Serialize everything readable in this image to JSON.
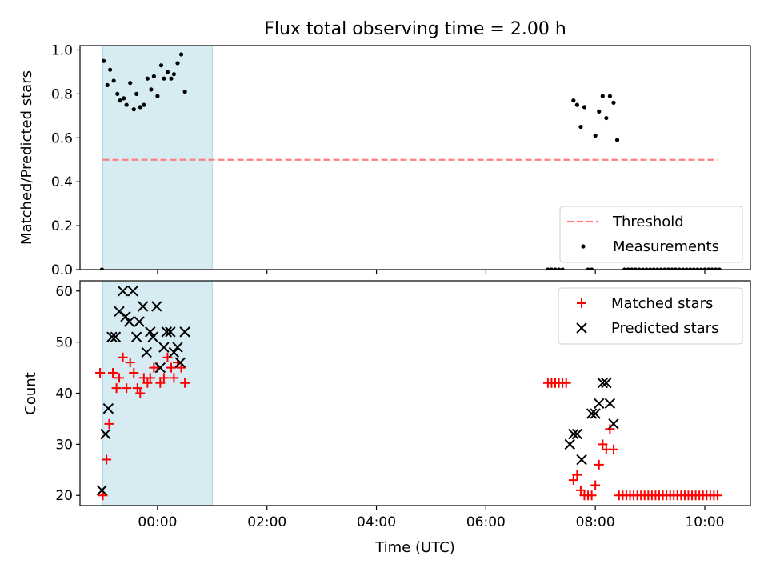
{
  "chart_data": [
    {
      "type": "scatter",
      "title": "Flux total observing time = 2.00 h",
      "xlabel": "",
      "ylabel": "Matched/Predicted stars",
      "xlim": [
        "-01:25",
        "10:50"
      ],
      "ylim": [
        0,
        1.02
      ],
      "yticks": [
        "0.0",
        "0.2",
        "0.4",
        "0.6",
        "0.8",
        "1.0"
      ],
      "shaded_span": [
        "-01:00",
        "01:00"
      ],
      "legend_position": "lower-right",
      "series": [
        {
          "name": "Threshold",
          "style": "dashed-line",
          "color": "#ff7f7f",
          "x": [
            "-01:00",
            "10:15"
          ],
          "values": [
            0.5,
            0.5
          ]
        },
        {
          "name": "Measurements",
          "style": "dot",
          "color": "#000000",
          "points": [
            [
              "-01:01",
              0.0
            ],
            [
              "-00:59",
              0.95
            ],
            [
              "-00:55",
              0.84
            ],
            [
              "-00:52",
              0.91
            ],
            [
              "-00:48",
              0.86
            ],
            [
              "-00:44",
              0.8
            ],
            [
              "-00:41",
              0.77
            ],
            [
              "-00:37",
              0.78
            ],
            [
              "-00:34",
              0.75
            ],
            [
              "-00:30",
              0.85
            ],
            [
              "-00:26",
              0.73
            ],
            [
              "-00:23",
              0.8
            ],
            [
              "-00:19",
              0.74
            ],
            [
              "-00:15",
              0.75
            ],
            [
              "-00:11",
              0.87
            ],
            [
              "-00:07",
              0.82
            ],
            [
              "-00:04",
              0.88
            ],
            [
              "00:00",
              0.79
            ],
            [
              "00:04",
              0.93
            ],
            [
              "00:07",
              0.87
            ],
            [
              "00:11",
              0.9
            ],
            [
              "00:15",
              0.87
            ],
            [
              "00:18",
              0.89
            ],
            [
              "00:22",
              0.94
            ],
            [
              "00:26",
              0.98
            ],
            [
              "00:30",
              0.81
            ],
            [
              "07:08",
              0.0
            ],
            [
              "07:12",
              0.0
            ],
            [
              "07:16",
              0.0
            ],
            [
              "07:20",
              0.0
            ],
            [
              "07:24",
              0.0
            ],
            [
              "07:36",
              0.77
            ],
            [
              "07:40",
              0.75
            ],
            [
              "07:44",
              0.65
            ],
            [
              "07:48",
              0.74
            ],
            [
              "07:52",
              0.0
            ],
            [
              "07:56",
              0.0
            ],
            [
              "08:00",
              0.61
            ],
            [
              "08:04",
              0.72
            ],
            [
              "08:08",
              0.79
            ],
            [
              "08:12",
              0.69
            ],
            [
              "08:16",
              0.79
            ],
            [
              "08:20",
              0.76
            ],
            [
              "08:24",
              0.59
            ],
            [
              "08:32",
              0.0
            ],
            [
              "08:36",
              0.0
            ],
            [
              "08:40",
              0.0
            ],
            [
              "08:44",
              0.0
            ],
            [
              "08:48",
              0.0
            ],
            [
              "08:52",
              0.0
            ],
            [
              "08:56",
              0.0
            ],
            [
              "09:00",
              0.0
            ],
            [
              "09:04",
              0.0
            ],
            [
              "09:08",
              0.0
            ],
            [
              "09:12",
              0.0
            ],
            [
              "09:16",
              0.0
            ],
            [
              "09:20",
              0.0
            ],
            [
              "09:24",
              0.0
            ],
            [
              "09:28",
              0.0
            ],
            [
              "09:32",
              0.0
            ],
            [
              "09:36",
              0.0
            ],
            [
              "09:40",
              0.0
            ],
            [
              "09:44",
              0.0
            ],
            [
              "09:48",
              0.0
            ],
            [
              "09:52",
              0.0
            ],
            [
              "09:56",
              0.0
            ],
            [
              "10:00",
              0.0
            ],
            [
              "10:04",
              0.0
            ],
            [
              "10:08",
              0.0
            ],
            [
              "10:12",
              0.0
            ],
            [
              "10:16",
              0.0
            ]
          ]
        }
      ]
    },
    {
      "type": "scatter",
      "title": "",
      "xlabel": "Time (UTC)",
      "ylabel": "Count",
      "xlim": [
        "-01:25",
        "10:50"
      ],
      "ylim": [
        18,
        62
      ],
      "yticks": [
        "20",
        "30",
        "40",
        "50",
        "60"
      ],
      "xticks": [
        "00:00",
        "02:00",
        "04:00",
        "06:00",
        "08:00",
        "10:00"
      ],
      "shaded_span": [
        "-01:00",
        "01:00"
      ],
      "legend_position": "upper-right",
      "series": [
        {
          "name": "Matched stars",
          "style": "plus",
          "color": "#ff0000",
          "points": [
            [
              "-01:03",
              44
            ],
            [
              "-01:00",
              20
            ],
            [
              "-00:56",
              27
            ],
            [
              "-00:53",
              34
            ],
            [
              "-00:49",
              44
            ],
            [
              "-00:45",
              41
            ],
            [
              "-00:42",
              43
            ],
            [
              "-00:38",
              47
            ],
            [
              "-00:34",
              41
            ],
            [
              "-00:30",
              46
            ],
            [
              "-00:26",
              44
            ],
            [
              "-00:22",
              41
            ],
            [
              "-00:19",
              40
            ],
            [
              "-00:15",
              43
            ],
            [
              "-00:11",
              42
            ],
            [
              "-00:08",
              43
            ],
            [
              "-00:04",
              45
            ],
            [
              "00:00",
              45
            ],
            [
              "00:03",
              42
            ],
            [
              "00:07",
              43
            ],
            [
              "00:11",
              47
            ],
            [
              "00:15",
              45
            ],
            [
              "00:18",
              43
            ],
            [
              "00:22",
              46
            ],
            [
              "00:26",
              45
            ],
            [
              "00:30",
              42
            ],
            [
              "07:08",
              42
            ],
            [
              "07:12",
              42
            ],
            [
              "07:16",
              42
            ],
            [
              "07:20",
              42
            ],
            [
              "07:24",
              42
            ],
            [
              "07:28",
              42
            ],
            [
              "07:36",
              23
            ],
            [
              "07:40",
              24
            ],
            [
              "07:44",
              21
            ],
            [
              "07:48",
              20
            ],
            [
              "07:52",
              20
            ],
            [
              "07:56",
              20
            ],
            [
              "08:00",
              22
            ],
            [
              "08:04",
              26
            ],
            [
              "08:08",
              30
            ],
            [
              "08:12",
              29
            ],
            [
              "08:16",
              33
            ],
            [
              "08:20",
              29
            ],
            [
              "08:26",
              20
            ],
            [
              "08:30",
              20
            ],
            [
              "08:34",
              20
            ],
            [
              "08:38",
              20
            ],
            [
              "08:42",
              20
            ],
            [
              "08:46",
              20
            ],
            [
              "08:50",
              20
            ],
            [
              "08:54",
              20
            ],
            [
              "08:58",
              20
            ],
            [
              "09:02",
              20
            ],
            [
              "09:06",
              20
            ],
            [
              "09:10",
              20
            ],
            [
              "09:14",
              20
            ],
            [
              "09:18",
              20
            ],
            [
              "09:22",
              20
            ],
            [
              "09:26",
              20
            ],
            [
              "09:30",
              20
            ],
            [
              "09:34",
              20
            ],
            [
              "09:38",
              20
            ],
            [
              "09:42",
              20
            ],
            [
              "09:46",
              20
            ],
            [
              "09:50",
              20
            ],
            [
              "09:54",
              20
            ],
            [
              "09:58",
              20
            ],
            [
              "10:02",
              20
            ],
            [
              "10:06",
              20
            ],
            [
              "10:10",
              20
            ],
            [
              "10:14",
              20
            ]
          ]
        },
        {
          "name": "Predicted stars",
          "style": "x",
          "color": "#000000",
          "points": [
            [
              "-01:01",
              21
            ],
            [
              "-00:57",
              32
            ],
            [
              "-00:54",
              37
            ],
            [
              "-00:50",
              51
            ],
            [
              "-00:46",
              51
            ],
            [
              "-00:42",
              56
            ],
            [
              "-00:38",
              60
            ],
            [
              "-00:35",
              55
            ],
            [
              "-00:31",
              54
            ],
            [
              "-00:27",
              60
            ],
            [
              "-00:23",
              51
            ],
            [
              "-00:20",
              54
            ],
            [
              "-00:16",
              57
            ],
            [
              "-00:12",
              48
            ],
            [
              "-00:08",
              52
            ],
            [
              "-00:05",
              51
            ],
            [
              "-00:01",
              57
            ],
            [
              "00:03",
              45
            ],
            [
              "00:07",
              49
            ],
            [
              "00:10",
              52
            ],
            [
              "00:14",
              52
            ],
            [
              "00:18",
              48
            ],
            [
              "00:22",
              49
            ],
            [
              "00:25",
              46
            ],
            [
              "00:30",
              52
            ],
            [
              "07:32",
              30
            ],
            [
              "07:36",
              32
            ],
            [
              "07:40",
              32
            ],
            [
              "07:45",
              27
            ],
            [
              "07:56",
              36
            ],
            [
              "08:00",
              36
            ],
            [
              "08:04",
              38
            ],
            [
              "08:08",
              42
            ],
            [
              "08:12",
              42
            ],
            [
              "08:16",
              38
            ],
            [
              "08:20",
              34
            ]
          ]
        }
      ]
    }
  ]
}
